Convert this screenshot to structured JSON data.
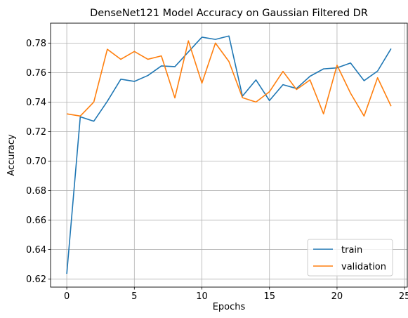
{
  "chart_data": {
    "type": "line",
    "title": "DenseNet121 Model Accuracy on Gaussian Filtered DR",
    "xlabel": "Epochs",
    "ylabel": "Accuracy",
    "xlim": [
      -1.2,
      25.2
    ],
    "ylim": [
      0.6145,
      0.7935
    ],
    "xticks": [
      0,
      5,
      10,
      15,
      20,
      25
    ],
    "yticks": [
      0.62,
      0.64,
      0.66,
      0.68,
      0.7,
      0.72,
      0.74,
      0.76,
      0.78
    ],
    "grid": true,
    "legend_position": "bottom-right",
    "x": [
      0,
      1,
      2,
      3,
      4,
      5,
      6,
      7,
      8,
      9,
      10,
      11,
      12,
      13,
      14,
      15,
      16,
      17,
      18,
      19,
      20,
      21,
      22,
      23,
      24
    ],
    "series": [
      {
        "name": "train",
        "color": "#1f77b4",
        "values": [
          0.6235,
          0.73,
          0.727,
          0.7405,
          0.7555,
          0.754,
          0.758,
          0.7645,
          0.764,
          0.774,
          0.784,
          0.7825,
          0.7848,
          0.744,
          0.755,
          0.741,
          0.7518,
          0.7492,
          0.7575,
          0.7625,
          0.7632,
          0.7665,
          0.7545,
          0.761,
          0.7762
        ]
      },
      {
        "name": "validation",
        "color": "#ff7f0e",
        "values": [
          0.732,
          0.7305,
          0.74,
          0.7758,
          0.769,
          0.7743,
          0.769,
          0.7713,
          0.7428,
          0.7815,
          0.7528,
          0.78,
          0.7675,
          0.743,
          0.74,
          0.747,
          0.7608,
          0.7485,
          0.755,
          0.732,
          0.765,
          0.746,
          0.7305,
          0.7565,
          0.7372
        ]
      }
    ]
  }
}
